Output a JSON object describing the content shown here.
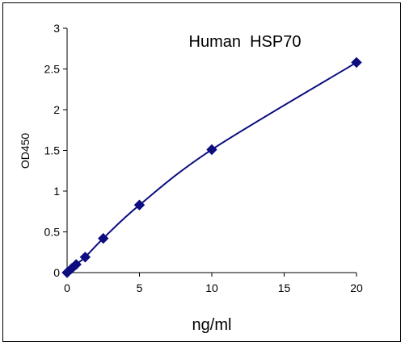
{
  "chart_data": {
    "type": "scatter",
    "title": "Human  HSP70",
    "xlabel": "ng/ml",
    "ylabel": "OD450",
    "xlim": [
      0,
      20
    ],
    "ylim": [
      0,
      3
    ],
    "x_ticks": [
      "0",
      "5",
      "10",
      "15",
      "20"
    ],
    "y_ticks": [
      "0",
      "0.5",
      "1",
      "1.5",
      "2",
      "2.5",
      "3"
    ],
    "grid": false,
    "legend": "none",
    "marker": "diamond",
    "fit_line": true,
    "series_color": "#0d0d80",
    "series": [
      {
        "x": [
          0,
          0.31,
          0.625,
          1.25,
          2.5,
          5,
          10,
          20
        ],
        "y": [
          0.0,
          0.05,
          0.1,
          0.19,
          0.42,
          0.83,
          1.51,
          2.58
        ]
      }
    ]
  }
}
